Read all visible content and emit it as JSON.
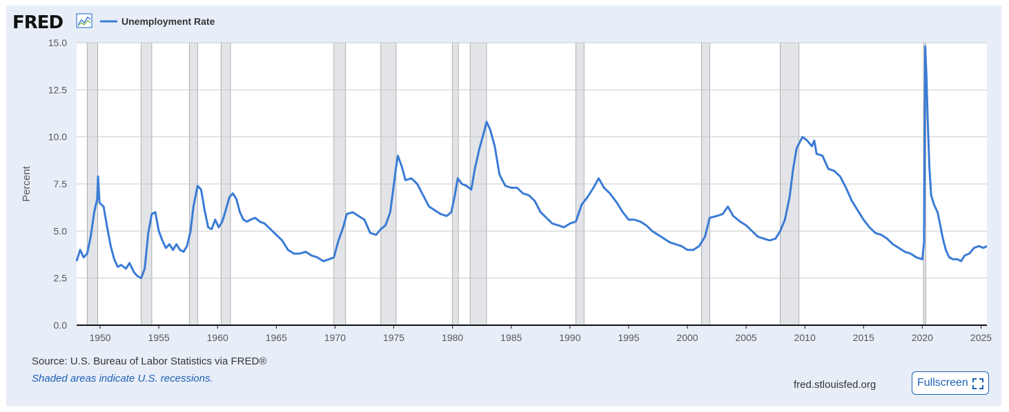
{
  "header": {
    "logo_text": "FRED",
    "logo_icon": "line-graph-icon",
    "legend_label": "Unemployment Rate"
  },
  "footer": {
    "source": "Source: U.S. Bureau of Labor Statistics via FRED®",
    "note": "Shaded areas indicate U.S. recessions.",
    "site": "fred.stlouisfed.org",
    "fullscreen_label": "Fullscreen",
    "fullscreen_icon": "expand-icon"
  },
  "colors": {
    "line": "#3a7bd5",
    "recession": "#e3e4e8",
    "grid": "#c9c9c9",
    "background": "#e8eef8",
    "plot_background": "#ffffff",
    "accent": "#1d5fb4"
  },
  "chart_data": {
    "type": "line",
    "title": "",
    "xlabel": "",
    "ylabel": "Percent",
    "xlim": [
      1948.0,
      2025.5
    ],
    "ylim": [
      0,
      15
    ],
    "yticks": [
      "0.0",
      "2.5",
      "5.0",
      "7.5",
      "10.0",
      "12.5",
      "15.0"
    ],
    "xticks": [
      "1950",
      "1955",
      "1960",
      "1965",
      "1970",
      "1975",
      "1980",
      "1985",
      "1990",
      "1995",
      "2000",
      "2005",
      "2010",
      "2015",
      "2020",
      "2025"
    ],
    "grid": true,
    "legend_position": "top-left",
    "recessions": [
      [
        1948.9,
        1949.8
      ],
      [
        1953.5,
        1954.4
      ],
      [
        1957.6,
        1958.3
      ],
      [
        1960.3,
        1961.1
      ],
      [
        1969.9,
        1970.9
      ],
      [
        1973.9,
        1975.2
      ],
      [
        1980.0,
        1980.5
      ],
      [
        1981.5,
        1982.9
      ],
      [
        1990.5,
        1991.2
      ],
      [
        2001.2,
        2001.9
      ],
      [
        2007.9,
        2009.5
      ],
      [
        2020.1,
        2020.3
      ]
    ],
    "series": [
      {
        "name": "Unemployment Rate",
        "points": [
          [
            1948.0,
            3.4
          ],
          [
            1948.3,
            4.0
          ],
          [
            1948.6,
            3.6
          ],
          [
            1948.9,
            3.8
          ],
          [
            1949.2,
            4.7
          ],
          [
            1949.5,
            6.0
          ],
          [
            1949.75,
            6.7
          ],
          [
            1949.83,
            7.9
          ],
          [
            1949.95,
            6.5
          ],
          [
            1950.3,
            6.3
          ],
          [
            1950.6,
            5.2
          ],
          [
            1950.9,
            4.2
          ],
          [
            1951.2,
            3.5
          ],
          [
            1951.5,
            3.1
          ],
          [
            1951.8,
            3.2
          ],
          [
            1952.2,
            3.0
          ],
          [
            1952.5,
            3.3
          ],
          [
            1952.9,
            2.8
          ],
          [
            1953.2,
            2.6
          ],
          [
            1953.5,
            2.5
          ],
          [
            1953.8,
            3.0
          ],
          [
            1954.1,
            4.9
          ],
          [
            1954.4,
            5.9
          ],
          [
            1954.7,
            6.0
          ],
          [
            1955.0,
            5.0
          ],
          [
            1955.3,
            4.5
          ],
          [
            1955.6,
            4.1
          ],
          [
            1955.9,
            4.3
          ],
          [
            1956.2,
            4.0
          ],
          [
            1956.5,
            4.3
          ],
          [
            1956.8,
            4.0
          ],
          [
            1957.1,
            3.9
          ],
          [
            1957.4,
            4.2
          ],
          [
            1957.7,
            5.0
          ],
          [
            1957.95,
            6.3
          ],
          [
            1958.3,
            7.4
          ],
          [
            1958.6,
            7.2
          ],
          [
            1958.9,
            6.1
          ],
          [
            1959.2,
            5.2
          ],
          [
            1959.5,
            5.1
          ],
          [
            1959.8,
            5.6
          ],
          [
            1960.1,
            5.2
          ],
          [
            1960.4,
            5.5
          ],
          [
            1960.7,
            6.1
          ],
          [
            1961.0,
            6.8
          ],
          [
            1961.3,
            7.0
          ],
          [
            1961.6,
            6.7
          ],
          [
            1961.9,
            6.0
          ],
          [
            1962.2,
            5.6
          ],
          [
            1962.5,
            5.5
          ],
          [
            1962.8,
            5.6
          ],
          [
            1963.2,
            5.7
          ],
          [
            1963.6,
            5.5
          ],
          [
            1964.0,
            5.4
          ],
          [
            1964.5,
            5.1
          ],
          [
            1965.0,
            4.8
          ],
          [
            1965.5,
            4.5
          ],
          [
            1966.0,
            4.0
          ],
          [
            1966.5,
            3.8
          ],
          [
            1967.0,
            3.8
          ],
          [
            1967.5,
            3.9
          ],
          [
            1968.0,
            3.7
          ],
          [
            1968.5,
            3.6
          ],
          [
            1969.0,
            3.4
          ],
          [
            1969.5,
            3.5
          ],
          [
            1969.9,
            3.6
          ],
          [
            1970.3,
            4.5
          ],
          [
            1970.7,
            5.2
          ],
          [
            1971.0,
            5.9
          ],
          [
            1971.5,
            6.0
          ],
          [
            1972.0,
            5.8
          ],
          [
            1972.5,
            5.6
          ],
          [
            1973.0,
            4.9
          ],
          [
            1973.5,
            4.8
          ],
          [
            1973.9,
            5.1
          ],
          [
            1974.3,
            5.3
          ],
          [
            1974.7,
            6.0
          ],
          [
            1974.95,
            7.2
          ],
          [
            1975.2,
            8.4
          ],
          [
            1975.35,
            9.0
          ],
          [
            1975.7,
            8.4
          ],
          [
            1976.0,
            7.7
          ],
          [
            1976.5,
            7.8
          ],
          [
            1977.0,
            7.5
          ],
          [
            1977.5,
            6.9
          ],
          [
            1978.0,
            6.3
          ],
          [
            1978.5,
            6.1
          ],
          [
            1979.0,
            5.9
          ],
          [
            1979.5,
            5.8
          ],
          [
            1979.9,
            6.0
          ],
          [
            1980.2,
            6.9
          ],
          [
            1980.45,
            7.8
          ],
          [
            1980.8,
            7.5
          ],
          [
            1981.2,
            7.4
          ],
          [
            1981.6,
            7.2
          ],
          [
            1981.9,
            8.3
          ],
          [
            1982.3,
            9.4
          ],
          [
            1982.7,
            10.3
          ],
          [
            1982.9,
            10.8
          ],
          [
            1983.2,
            10.4
          ],
          [
            1983.6,
            9.5
          ],
          [
            1984.0,
            8.0
          ],
          [
            1984.5,
            7.4
          ],
          [
            1985.0,
            7.3
          ],
          [
            1985.5,
            7.3
          ],
          [
            1986.0,
            7.0
          ],
          [
            1986.5,
            6.9
          ],
          [
            1987.0,
            6.6
          ],
          [
            1987.5,
            6.0
          ],
          [
            1988.0,
            5.7
          ],
          [
            1988.5,
            5.4
          ],
          [
            1989.0,
            5.3
          ],
          [
            1989.5,
            5.2
          ],
          [
            1990.0,
            5.4
          ],
          [
            1990.5,
            5.5
          ],
          [
            1991.0,
            6.4
          ],
          [
            1991.5,
            6.8
          ],
          [
            1992.0,
            7.3
          ],
          [
            1992.45,
            7.8
          ],
          [
            1992.9,
            7.3
          ],
          [
            1993.4,
            7.0
          ],
          [
            1994.0,
            6.5
          ],
          [
            1994.5,
            6.0
          ],
          [
            1995.0,
            5.6
          ],
          [
            1995.5,
            5.6
          ],
          [
            1996.0,
            5.5
          ],
          [
            1996.5,
            5.3
          ],
          [
            1997.0,
            5.0
          ],
          [
            1997.5,
            4.8
          ],
          [
            1998.0,
            4.6
          ],
          [
            1998.5,
            4.4
          ],
          [
            1999.0,
            4.3
          ],
          [
            1999.5,
            4.2
          ],
          [
            2000.0,
            4.0
          ],
          [
            2000.5,
            4.0
          ],
          [
            2001.0,
            4.2
          ],
          [
            2001.5,
            4.7
          ],
          [
            2001.9,
            5.7
          ],
          [
            2002.5,
            5.8
          ],
          [
            2003.0,
            5.9
          ],
          [
            2003.45,
            6.3
          ],
          [
            2003.9,
            5.8
          ],
          [
            2004.5,
            5.5
          ],
          [
            2005.0,
            5.3
          ],
          [
            2005.5,
            5.0
          ],
          [
            2006.0,
            4.7
          ],
          [
            2006.5,
            4.6
          ],
          [
            2007.0,
            4.5
          ],
          [
            2007.5,
            4.6
          ],
          [
            2007.9,
            5.0
          ],
          [
            2008.3,
            5.6
          ],
          [
            2008.7,
            6.8
          ],
          [
            2009.0,
            8.3
          ],
          [
            2009.3,
            9.4
          ],
          [
            2009.8,
            10.0
          ],
          [
            2010.2,
            9.8
          ],
          [
            2010.6,
            9.5
          ],
          [
            2010.8,
            9.8
          ],
          [
            2011.0,
            9.1
          ],
          [
            2011.5,
            9.0
          ],
          [
            2012.0,
            8.3
          ],
          [
            2012.5,
            8.2
          ],
          [
            2013.0,
            7.9
          ],
          [
            2013.5,
            7.3
          ],
          [
            2014.0,
            6.6
          ],
          [
            2014.5,
            6.1
          ],
          [
            2015.0,
            5.6
          ],
          [
            2015.5,
            5.2
          ],
          [
            2016.0,
            4.9
          ],
          [
            2016.5,
            4.8
          ],
          [
            2017.0,
            4.6
          ],
          [
            2017.5,
            4.3
          ],
          [
            2018.0,
            4.1
          ],
          [
            2018.5,
            3.9
          ],
          [
            2019.0,
            3.8
          ],
          [
            2019.5,
            3.6
          ],
          [
            2020.0,
            3.5
          ],
          [
            2020.15,
            4.4
          ],
          [
            2020.25,
            14.8
          ],
          [
            2020.35,
            13.2
          ],
          [
            2020.45,
            11.0
          ],
          [
            2020.6,
            8.4
          ],
          [
            2020.75,
            6.9
          ],
          [
            2021.0,
            6.4
          ],
          [
            2021.3,
            6.0
          ],
          [
            2021.5,
            5.4
          ],
          [
            2021.75,
            4.6
          ],
          [
            2022.0,
            4.0
          ],
          [
            2022.3,
            3.6
          ],
          [
            2022.6,
            3.5
          ],
          [
            2023.0,
            3.5
          ],
          [
            2023.3,
            3.4
          ],
          [
            2023.6,
            3.7
          ],
          [
            2024.0,
            3.8
          ],
          [
            2024.4,
            4.1
          ],
          [
            2024.8,
            4.2
          ],
          [
            2025.2,
            4.1
          ],
          [
            2025.5,
            4.2
          ]
        ]
      }
    ]
  }
}
